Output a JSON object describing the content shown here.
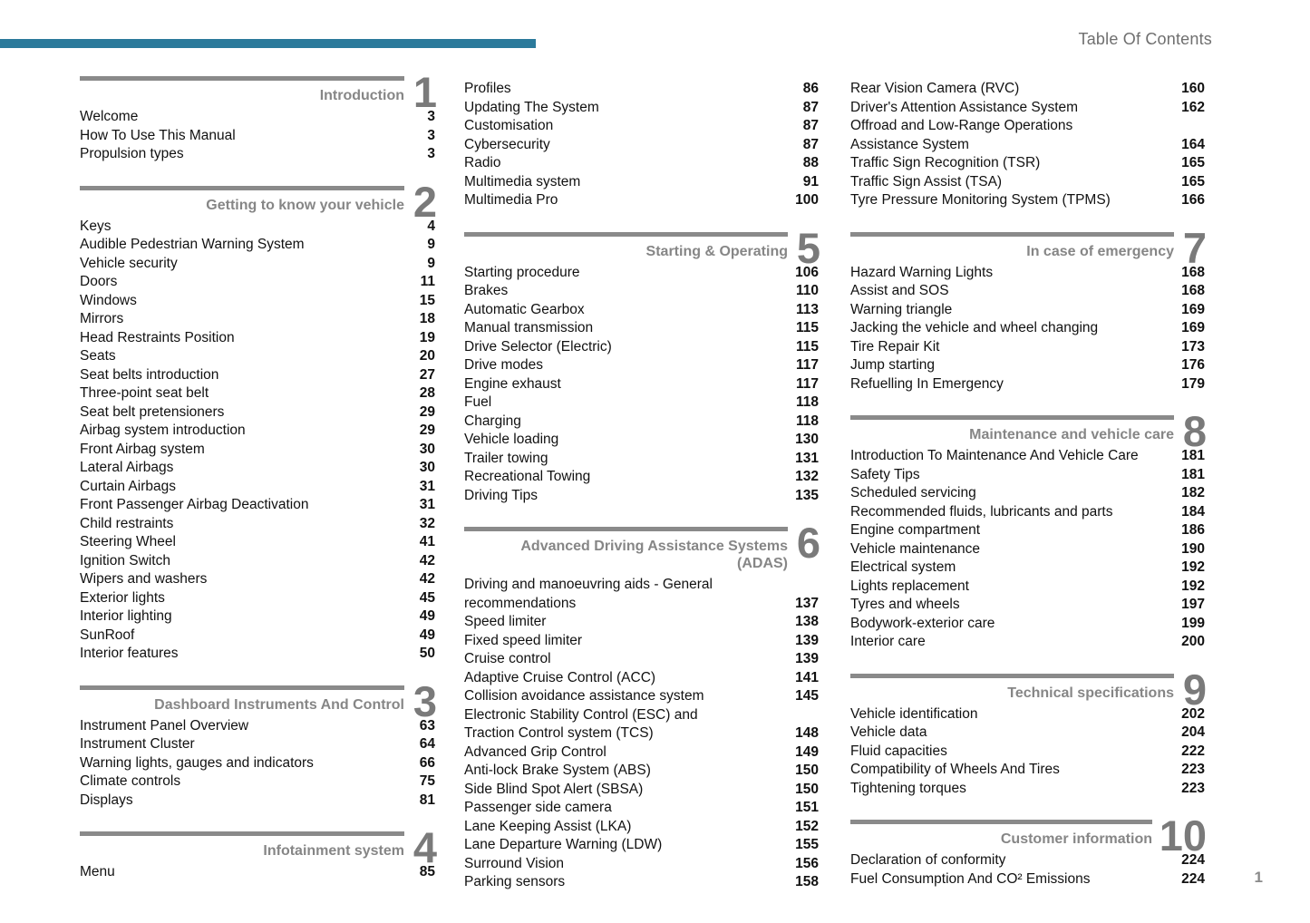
{
  "page": {
    "header": "Table Of Contents",
    "footer_page_number": "1",
    "accent_color": "#2b7a9b"
  },
  "columns": [
    {
      "blocks": [
        {
          "type": "section",
          "number": "1",
          "title_lines": [
            "Introduction"
          ],
          "items": [
            {
              "label": "Welcome",
              "page": "3"
            },
            {
              "label": "How To Use This Manual",
              "page": "3"
            },
            {
              "label": "Propulsion types",
              "page": "3"
            }
          ]
        },
        {
          "type": "section",
          "number": "2",
          "title_lines": [
            "Getting to know your vehicle"
          ],
          "items": [
            {
              "label": "Keys",
              "page": "4"
            },
            {
              "label": "Audible Pedestrian Warning System",
              "page": "9"
            },
            {
              "label": "Vehicle security",
              "page": "9"
            },
            {
              "label": "Doors",
              "page": "11"
            },
            {
              "label": "Windows",
              "page": "15"
            },
            {
              "label": "Mirrors",
              "page": "18"
            },
            {
              "label": "Head Restraints Position",
              "page": "19"
            },
            {
              "label": "Seats",
              "page": "20"
            },
            {
              "label": "Seat belts introduction",
              "page": "27"
            },
            {
              "label": "Three-point seat belt",
              "page": "28"
            },
            {
              "label": "Seat belt pretensioners",
              "page": "29"
            },
            {
              "label": "Airbag system introduction",
              "page": "29"
            },
            {
              "label": "Front Airbag system",
              "page": "30"
            },
            {
              "label": "Lateral Airbags",
              "page": "30"
            },
            {
              "label": "Curtain Airbags",
              "page": "31"
            },
            {
              "label": "Front Passenger Airbag Deactivation",
              "page": "31"
            },
            {
              "label": "Child restraints",
              "page": "32"
            },
            {
              "label": "Steering Wheel",
              "page": "41"
            },
            {
              "label": "Ignition Switch",
              "page": "42"
            },
            {
              "label": "Wipers and washers",
              "page": "42"
            },
            {
              "label": "Exterior lights",
              "page": "45"
            },
            {
              "label": "Interior lighting",
              "page": "49"
            },
            {
              "label": "SunRoof",
              "page": "49"
            },
            {
              "label": "Interior features",
              "page": "50"
            }
          ]
        },
        {
          "type": "section",
          "number": "3",
          "title_lines": [
            "Dashboard Instruments And Control"
          ],
          "items": [
            {
              "label": "Instrument Panel Overview",
              "page": "63"
            },
            {
              "label": "Instrument Cluster",
              "page": "64"
            },
            {
              "label": "Warning lights, gauges and indicators",
              "page": "66"
            },
            {
              "label": "Climate controls",
              "page": "75"
            },
            {
              "label": "Displays",
              "page": "81"
            }
          ]
        },
        {
          "type": "section",
          "number": "4",
          "title_lines": [
            "Infotainment system"
          ],
          "items": [
            {
              "label": "Menu",
              "page": "85"
            }
          ]
        }
      ]
    },
    {
      "blocks": [
        {
          "type": "plain",
          "items": [
            {
              "label": "Profiles",
              "page": "86"
            },
            {
              "label": "Updating The System",
              "page": "87"
            },
            {
              "label": "Customisation",
              "page": "87"
            },
            {
              "label": "Cybersecurity",
              "page": "87"
            },
            {
              "label": "Radio",
              "page": "88"
            },
            {
              "label": "Multimedia system",
              "page": "91"
            },
            {
              "label": "Multimedia Pro",
              "page": "100"
            }
          ]
        },
        {
          "type": "section",
          "number": "5",
          "title_lines": [
            "Starting & Operating"
          ],
          "items": [
            {
              "label": "Starting procedure",
              "page": "106"
            },
            {
              "label": "Brakes",
              "page": "110"
            },
            {
              "label": "Automatic Gearbox",
              "page": "113"
            },
            {
              "label": "Manual transmission",
              "page": "115"
            },
            {
              "label": "Drive Selector (Electric)",
              "page": "115"
            },
            {
              "label": "Drive modes",
              "page": "117"
            },
            {
              "label": "Engine exhaust",
              "page": "117"
            },
            {
              "label": "Fuel",
              "page": "118"
            },
            {
              "label": "Charging",
              "page": "118"
            },
            {
              "label": "Vehicle loading",
              "page": "130"
            },
            {
              "label": "Trailer towing",
              "page": "131"
            },
            {
              "label": "Recreational Towing",
              "page": "132"
            },
            {
              "label": "Driving Tips",
              "page": "135"
            }
          ]
        },
        {
          "type": "section",
          "number": "6",
          "title_lines": [
            "Advanced Driving Assistance Systems",
            "(ADAS)"
          ],
          "items": [
            {
              "label": "Driving and manoeuvring aids - General\nrecommendations",
              "page": "137"
            },
            {
              "label": "Speed limiter",
              "page": "138"
            },
            {
              "label": "Fixed speed limiter",
              "page": "139"
            },
            {
              "label": "Cruise control",
              "page": "139"
            },
            {
              "label": "Adaptive Cruise Control (ACC)",
              "page": "141"
            },
            {
              "label": "Collision avoidance assistance system",
              "page": "145"
            },
            {
              "label": "Electronic Stability Control (ESC) and\nTraction Control system (TCS)",
              "page": "148"
            },
            {
              "label": "Advanced Grip Control",
              "page": "149"
            },
            {
              "label": "Anti-lock Brake System (ABS)",
              "page": "150"
            },
            {
              "label": "Side Blind Spot Alert (SBSA)",
              "page": "150"
            },
            {
              "label": "Passenger side camera",
              "page": "151"
            },
            {
              "label": "Lane Keeping Assist (LKA)",
              "page": "152"
            },
            {
              "label": "Lane Departure Warning (LDW)",
              "page": "155"
            },
            {
              "label": "Surround Vision",
              "page": "156"
            },
            {
              "label": "Parking sensors",
              "page": "158"
            }
          ]
        }
      ]
    },
    {
      "blocks": [
        {
          "type": "plain",
          "items": [
            {
              "label": "Rear Vision Camera (RVC)",
              "page": "160"
            },
            {
              "label": "Driver's Attention Assistance System",
              "page": "162"
            },
            {
              "label": "Offroad and Low-Range Operations\nAssistance System",
              "page": "164"
            },
            {
              "label": "Traffic Sign Recognition (TSR)",
              "page": "165"
            },
            {
              "label": "Traffic Sign Assist (TSA)",
              "page": "165"
            },
            {
              "label": "Tyre Pressure Monitoring System (TPMS)",
              "page": "166"
            }
          ]
        },
        {
          "type": "section",
          "number": "7",
          "title_lines": [
            "In case of emergency"
          ],
          "items": [
            {
              "label": "Hazard Warning Lights",
              "page": "168"
            },
            {
              "label": "Assist and SOS",
              "page": "168"
            },
            {
              "label": "Warning triangle",
              "page": "169"
            },
            {
              "label": "Jacking the vehicle and wheel changing",
              "page": "169"
            },
            {
              "label": "Tire Repair Kit",
              "page": "173"
            },
            {
              "label": "Jump starting",
              "page": "176"
            },
            {
              "label": "Refuelling In Emergency",
              "page": "179"
            }
          ]
        },
        {
          "type": "section",
          "number": "8",
          "title_lines": [
            "Maintenance and vehicle care"
          ],
          "items": [
            {
              "label": "Introduction To Maintenance And Vehicle Care",
              "page": "181"
            },
            {
              "label": "Safety Tips",
              "page": "181"
            },
            {
              "label": "Scheduled servicing",
              "page": "182"
            },
            {
              "label": "Recommended fluids, lubricants and parts",
              "page": "184"
            },
            {
              "label": "Engine compartment",
              "page": "186"
            },
            {
              "label": "Vehicle maintenance",
              "page": "190"
            },
            {
              "label": "Electrical system",
              "page": "192"
            },
            {
              "label": "Lights replacement",
              "page": "192"
            },
            {
              "label": "Tyres and wheels",
              "page": "197"
            },
            {
              "label": "Bodywork-exterior care",
              "page": "199"
            },
            {
              "label": "Interior care",
              "page": "200"
            }
          ]
        },
        {
          "type": "section",
          "number": "9",
          "title_lines": [
            "Technical specifications"
          ],
          "items": [
            {
              "label": "Vehicle identification",
              "page": "202"
            },
            {
              "label": "Vehicle data",
              "page": "204"
            },
            {
              "label": "Fluid capacities",
              "page": "222"
            },
            {
              "label": "Compatibility of Wheels And Tires",
              "page": "223"
            },
            {
              "label": "Tightening torques",
              "page": "223"
            }
          ]
        },
        {
          "type": "section",
          "number": "10",
          "title_lines": [
            "Customer information"
          ],
          "items": [
            {
              "label": "Declaration of conformity",
              "page": "224"
            },
            {
              "label": "Fuel Consumption And CO² Emissions",
              "page": "224"
            }
          ]
        }
      ]
    }
  ]
}
